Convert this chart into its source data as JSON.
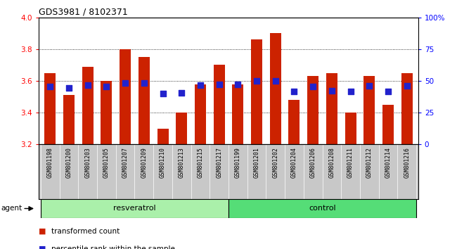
{
  "title": "GDS3981 / 8102371",
  "samples": [
    "GSM801198",
    "GSM801200",
    "GSM801203",
    "GSM801205",
    "GSM801207",
    "GSM801209",
    "GSM801210",
    "GSM801213",
    "GSM801215",
    "GSM801217",
    "GSM801199",
    "GSM801201",
    "GSM801202",
    "GSM801204",
    "GSM801206",
    "GSM801208",
    "GSM801211",
    "GSM801212",
    "GSM801214",
    "GSM801216"
  ],
  "bar_values": [
    3.65,
    3.51,
    3.69,
    3.6,
    3.8,
    3.75,
    3.3,
    3.4,
    3.58,
    3.7,
    3.58,
    3.86,
    3.9,
    3.48,
    3.63,
    3.65,
    3.4,
    3.63,
    3.45,
    3.65
  ],
  "percentile_values": [
    3.565,
    3.555,
    3.575,
    3.565,
    3.585,
    3.585,
    3.52,
    3.525,
    3.575,
    3.58,
    3.578,
    3.6,
    3.6,
    3.535,
    3.565,
    3.54,
    3.535,
    3.57,
    3.535,
    3.57
  ],
  "resveratrol_count": 10,
  "control_count": 10,
  "ymin": 3.2,
  "ymax": 4.0,
  "yticks": [
    3.2,
    3.4,
    3.6,
    3.8,
    4.0
  ],
  "right_yticks": [
    0,
    25,
    50,
    75,
    100
  ],
  "right_ylabels": [
    "0",
    "25",
    "50",
    "75",
    "100%"
  ],
  "bar_color": "#cc2200",
  "dot_color": "#2222cc",
  "resveratrol_bg": "#aaf0aa",
  "control_bg": "#55dd77",
  "xticklabel_bg": "#c8c8c8",
  "agent_label": "agent",
  "resveratrol_label": "resveratrol",
  "control_label": "control",
  "legend1": "transformed count",
  "legend2": "percentile rank within the sample",
  "bar_width": 0.6
}
